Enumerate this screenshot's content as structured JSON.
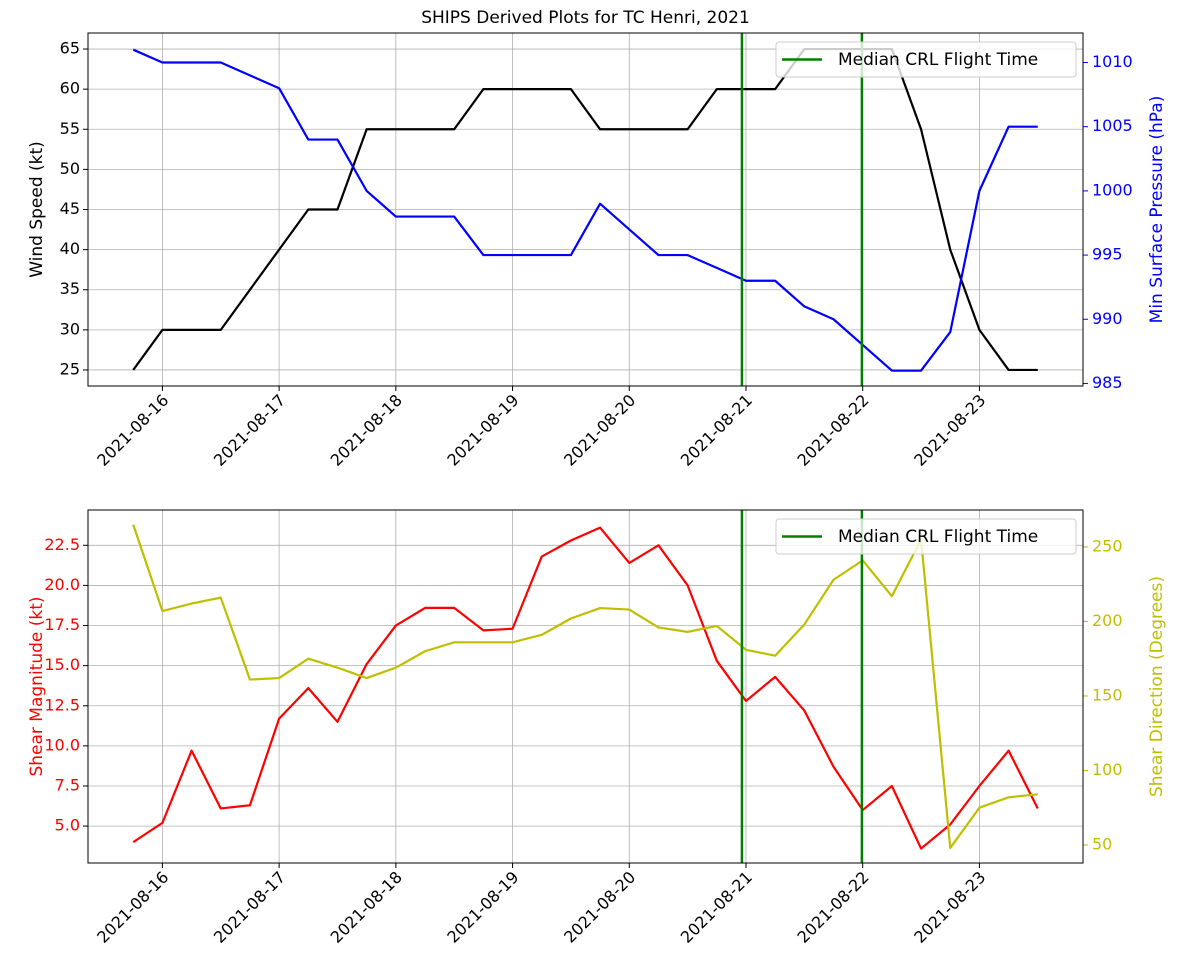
{
  "chart_data": [
    {
      "type": "line",
      "title": "SHIPS Derived Plots for TC Henri, 2021",
      "ylabel": "Wind Speed (kt)",
      "y2label": "Min Surface Pressure (hPa)",
      "y_color": "#000000",
      "y2_color": "#0000ff",
      "grid": true,
      "legend": "upper right",
      "x": [
        "2021-08-15T18:00",
        "2021-08-16T00:00",
        "2021-08-16T06:00",
        "2021-08-16T12:00",
        "2021-08-16T18:00",
        "2021-08-17T00:00",
        "2021-08-17T06:00",
        "2021-08-17T12:00",
        "2021-08-17T18:00",
        "2021-08-18T00:00",
        "2021-08-18T06:00",
        "2021-08-18T12:00",
        "2021-08-18T18:00",
        "2021-08-19T00:00",
        "2021-08-19T06:00",
        "2021-08-19T12:00",
        "2021-08-19T18:00",
        "2021-08-20T00:00",
        "2021-08-20T06:00",
        "2021-08-20T12:00",
        "2021-08-20T18:00",
        "2021-08-21T00:00",
        "2021-08-21T06:00",
        "2021-08-21T12:00",
        "2021-08-21T18:00",
        "2021-08-22T00:00",
        "2021-08-22T06:00",
        "2021-08-22T12:00",
        "2021-08-22T18:00",
        "2021-08-23T00:00",
        "2021-08-23T06:00",
        "2021-08-23T12:00"
      ],
      "xlim": [
        "2021-08-15T08:42",
        "2021-08-23T21:18"
      ],
      "xticks": [
        "2021-08-16",
        "2021-08-17",
        "2021-08-18",
        "2021-08-19",
        "2021-08-20",
        "2021-08-21",
        "2021-08-22",
        "2021-08-23"
      ],
      "ylim": [
        23,
        67
      ],
      "yticks": [
        25,
        30,
        35,
        40,
        45,
        50,
        55,
        60,
        65
      ],
      "y2lim": [
        984.8,
        1012.3
      ],
      "y2ticks": [
        985,
        990,
        995,
        1000,
        1005,
        1010
      ],
      "series": [
        {
          "color": "#000000",
          "values": [
            25,
            30,
            30,
            30,
            35,
            40,
            45,
            45,
            55,
            55,
            55,
            55,
            60,
            60,
            60,
            60,
            55,
            55,
            55,
            55,
            60,
            60,
            60,
            65,
            65,
            65,
            65,
            55,
            40,
            30,
            25,
            25
          ]
        },
        {
          "color": "#0000ff",
          "axis": "y2",
          "values": [
            1011,
            1010,
            1010,
            1010,
            1009,
            1008,
            1004,
            1004,
            1000,
            998,
            998,
            998,
            995,
            995,
            995,
            995,
            999,
            997,
            995,
            995,
            994,
            993,
            993,
            991,
            990,
            988,
            986,
            986,
            989,
            1000,
            1005,
            1005
          ]
        }
      ],
      "vlines": {
        "name": "Median CRL Flight Time",
        "color": "#008000",
        "x": [
          "2021-08-20T23:10",
          "2021-08-21T23:50"
        ]
      }
    },
    {
      "type": "line",
      "ylabel": "Shear Magnitude (kt)",
      "y2label": "Shear Direction (Degrees)",
      "y_color": "#ff0000",
      "y2_color": "#bfbf00",
      "grid": true,
      "legend": "upper right",
      "x": [
        "2021-08-15T18:00",
        "2021-08-16T00:00",
        "2021-08-16T06:00",
        "2021-08-16T12:00",
        "2021-08-16T18:00",
        "2021-08-17T00:00",
        "2021-08-17T06:00",
        "2021-08-17T12:00",
        "2021-08-17T18:00",
        "2021-08-18T00:00",
        "2021-08-18T06:00",
        "2021-08-18T12:00",
        "2021-08-18T18:00",
        "2021-08-19T00:00",
        "2021-08-19T06:00",
        "2021-08-19T12:00",
        "2021-08-19T18:00",
        "2021-08-20T00:00",
        "2021-08-20T06:00",
        "2021-08-20T12:00",
        "2021-08-20T18:00",
        "2021-08-21T00:00",
        "2021-08-21T06:00",
        "2021-08-21T12:00",
        "2021-08-21T18:00",
        "2021-08-22T00:00",
        "2021-08-22T06:00",
        "2021-08-22T12:00",
        "2021-08-22T18:00",
        "2021-08-23T00:00",
        "2021-08-23T06:00",
        "2021-08-23T12:00"
      ],
      "xlim": [
        "2021-08-15T08:42",
        "2021-08-23T21:18"
      ],
      "xticks": [
        "2021-08-16",
        "2021-08-17",
        "2021-08-18",
        "2021-08-19",
        "2021-08-20",
        "2021-08-21",
        "2021-08-22",
        "2021-08-23"
      ],
      "ylim": [
        2.7,
        24.7
      ],
      "yticks": [
        {
          "value": 5,
          "label": "5.0"
        },
        7.5,
        {
          "value": 10,
          "label": "10.0"
        },
        12.5,
        {
          "value": 15,
          "label": "15.0"
        },
        17.5,
        {
          "value": 20,
          "label": "20.0"
        },
        22.5
      ],
      "y2lim": [
        37.9,
        274.8
      ],
      "y2ticks": [
        50,
        100,
        150,
        200,
        250
      ],
      "series": [
        {
          "color": "#ff0000",
          "values": [
            4.0,
            5.2,
            9.7,
            6.1,
            6.3,
            11.7,
            13.6,
            11.5,
            15.1,
            17.5,
            18.6,
            18.6,
            17.2,
            17.3,
            21.8,
            22.8,
            23.6,
            21.4,
            22.5,
            20.0,
            15.3,
            12.8,
            14.3,
            12.2,
            8.7,
            6.0,
            7.5,
            3.6,
            5.1,
            7.5,
            9.7,
            6.1
          ]
        },
        {
          "color": "#bfbf00",
          "axis": "y2",
          "values": [
            265,
            207,
            212,
            216,
            161,
            162,
            175,
            169,
            162,
            169,
            180,
            186,
            186,
            186,
            191,
            202,
            209,
            208,
            196,
            193,
            197,
            181,
            177,
            198,
            228,
            241,
            217,
            255,
            48,
            75,
            82,
            84
          ]
        }
      ],
      "vlines": {
        "name": "Median CRL Flight Time",
        "color": "#008000",
        "x": [
          "2021-08-20T23:10",
          "2021-08-21T23:50"
        ]
      }
    }
  ]
}
